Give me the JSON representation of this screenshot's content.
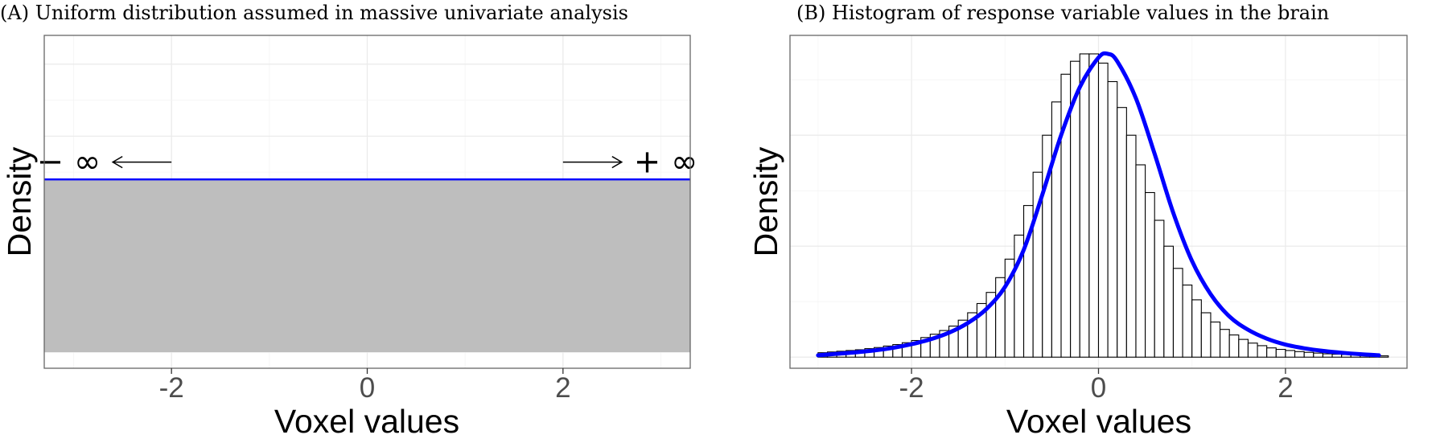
{
  "figure": {
    "background": "#ffffff"
  },
  "chart_data": [
    {
      "type": "area",
      "title": "(A) Uniform distribution assumed in massive univariate analysis",
      "xlabel": "Voxel values",
      "ylabel": "Density",
      "xlim": [
        -3.3,
        3.3
      ],
      "ylim": [
        0,
        1.1
      ],
      "xticks": [
        -2,
        0,
        2
      ],
      "xtick_labels": [
        "-2",
        "0",
        "2"
      ],
      "yticks_shown": false,
      "grid": true,
      "area": {
        "x": [
          -3.3,
          3.3
        ],
        "y": 0.6,
        "fill": "#bebebe",
        "line_color": "#0000ff"
      },
      "annotations": [
        {
          "text": "− ∞",
          "x": -3.05,
          "y": 0.66
        },
        {
          "text": "+ ∞",
          "x": 3.05,
          "y": 0.66
        }
      ],
      "arrows": [
        {
          "from": [
            -2.0,
            0.66
          ],
          "to": [
            -2.6,
            0.66
          ]
        },
        {
          "from": [
            2.0,
            0.66
          ],
          "to": [
            2.6,
            0.66
          ]
        }
      ]
    },
    {
      "type": "bar",
      "title": "(B) Histogram of response variable values in the brain",
      "xlabel": "Voxel values",
      "ylabel": "Density",
      "xlim": [
        -3.3,
        3.3
      ],
      "ylim": [
        -0.03,
        0.87
      ],
      "xticks": [
        -2,
        0,
        2
      ],
      "xtick_labels": [
        "-2",
        "0",
        "2"
      ],
      "yticks_shown": false,
      "grid": true,
      "histogram": {
        "bin_start": -3.0,
        "bin_width": 0.1,
        "values": [
          0.012,
          0.014,
          0.016,
          0.018,
          0.02,
          0.023,
          0.026,
          0.03,
          0.034,
          0.039,
          0.045,
          0.053,
          0.062,
          0.072,
          0.084,
          0.1,
          0.12,
          0.145,
          0.175,
          0.215,
          0.265,
          0.33,
          0.41,
          0.5,
          0.6,
          0.69,
          0.765,
          0.8,
          0.82,
          0.82,
          0.795,
          0.745,
          0.675,
          0.6,
          0.52,
          0.445,
          0.37,
          0.3,
          0.24,
          0.195,
          0.155,
          0.12,
          0.095,
          0.075,
          0.06,
          0.048,
          0.038,
          0.031,
          0.025,
          0.021,
          0.018,
          0.015,
          0.013,
          0.011,
          0.009,
          0.008,
          0.007,
          0.006,
          0.005,
          0.004,
          0.0035
        ],
        "bar_color": "#ffffff",
        "edge_color": "#000000"
      },
      "density_curve": {
        "color": "#0000ff",
        "x": [
          -3.0,
          -2.8,
          -2.6,
          -2.4,
          -2.2,
          -2.0,
          -1.8,
          -1.6,
          -1.4,
          -1.2,
          -1.0,
          -0.8,
          -0.6,
          -0.4,
          -0.2,
          0.0,
          0.1,
          0.2,
          0.4,
          0.6,
          0.8,
          1.0,
          1.2,
          1.4,
          1.6,
          1.8,
          2.0,
          2.2,
          2.4,
          2.6,
          2.8,
          3.0
        ],
        "y": [
          0.005,
          0.009,
          0.013,
          0.018,
          0.025,
          0.035,
          0.048,
          0.066,
          0.092,
          0.13,
          0.19,
          0.29,
          0.44,
          0.6,
          0.73,
          0.81,
          0.82,
          0.8,
          0.7,
          0.55,
          0.39,
          0.26,
          0.17,
          0.11,
          0.074,
          0.05,
          0.034,
          0.024,
          0.017,
          0.012,
          0.008,
          0.005
        ]
      }
    }
  ]
}
